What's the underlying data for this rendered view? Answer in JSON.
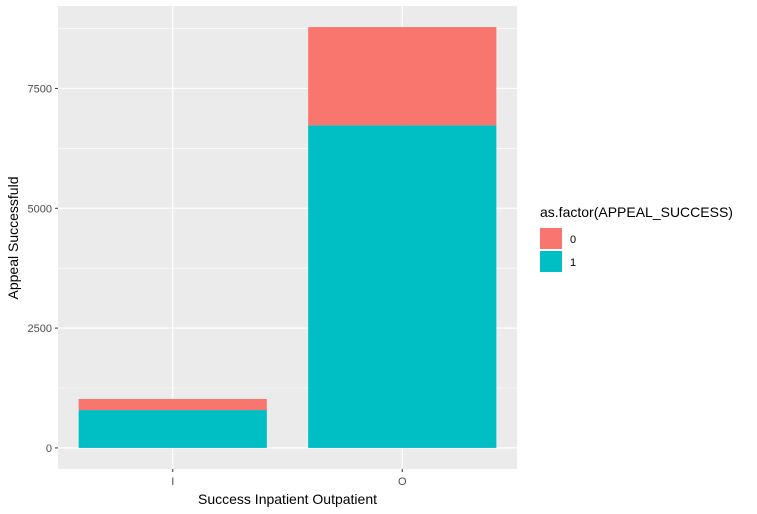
{
  "chart_data": {
    "type": "bar",
    "stacked": true,
    "categories": [
      "I",
      "O"
    ],
    "series": [
      {
        "name": "0",
        "values": [
          230,
          2050
        ],
        "color": "#F8766D"
      },
      {
        "name": "1",
        "values": [
          790,
          6730
        ],
        "color": "#00BFC4"
      }
    ],
    "xlabel": "Success Inpatient Outpatient",
    "ylabel": "Appeal Successfuld",
    "ylim": [
      -440,
      9220
    ],
    "yticks": [
      0,
      2500,
      5000,
      7500
    ],
    "ytick_labels": [
      "0",
      "2500",
      "5000",
      "7500"
    ],
    "legend_title": "as.factor(APPEAL_SUCCESS)",
    "legend_position": "right",
    "grid": true,
    "panel_background": "#EBEBEB"
  }
}
